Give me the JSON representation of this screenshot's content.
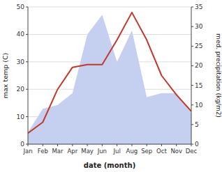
{
  "chart_data": {
    "type": "line",
    "categories": [
      "Jan",
      "Feb",
      "Mar",
      "Apr",
      "May",
      "Jun",
      "Jul",
      "Aug",
      "Sep",
      "Oct",
      "Nov",
      "Dec"
    ],
    "series": [
      {
        "type": "area",
        "axis": "y2",
        "color": "#c5cff0",
        "values": [
          3,
          9,
          10,
          13,
          28,
          33,
          21,
          29,
          12,
          13,
          13,
          8
        ]
      },
      {
        "type": "line",
        "color": "#c0392b",
        "values": [
          4,
          8,
          20,
          28,
          29,
          29,
          38,
          48,
          38,
          25,
          18,
          12
        ]
      }
    ],
    "x_label": "date (month)",
    "y_label": "max temp (C)",
    "y2_label": "med. precipitation (kg/m2)",
    "ylim": [
      0,
      50
    ],
    "yticks": [
      0,
      10,
      20,
      30,
      40,
      50
    ],
    "y2lim": [
      0,
      35
    ],
    "y2ticks": [
      0,
      5,
      10,
      15,
      20,
      25,
      30,
      35
    ],
    "grid": true
  }
}
